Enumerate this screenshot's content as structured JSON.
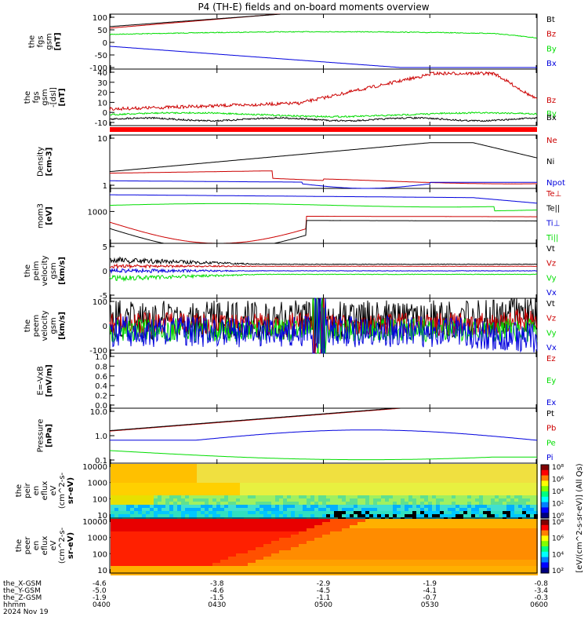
{
  "title": "P4 (TH-E) fields and on-board moments overview",
  "colors": {
    "black": "#000000",
    "red": "#cc0000",
    "green": "#00dd00",
    "blue": "#0000dd"
  },
  "chart_data": [
    {
      "type": "line",
      "panel": "fgs_gsm",
      "ylabel": [
        "the",
        "fgs",
        "gsm",
        "[nT]"
      ],
      "ylim": [
        -100,
        100
      ],
      "yticks": [
        "100",
        "50",
        "0",
        "-50",
        "-100"
      ],
      "series": [
        {
          "name": "Bt",
          "color": "black"
        },
        {
          "name": "Bz",
          "color": "red"
        },
        {
          "name": "By",
          "color": "green"
        },
        {
          "name": "Bx",
          "color": "blue"
        }
      ]
    },
    {
      "type": "line",
      "panel": "fgs_gse_dsl",
      "ylabel": [
        "the",
        "fgs",
        "gsm",
        "-[dsl]",
        "[nT]"
      ],
      "ylim": [
        -14,
        43
      ],
      "yticks": [
        "40",
        "30",
        "20",
        "10",
        "0",
        "-10"
      ],
      "series": [
        {
          "name": "Bz",
          "color": "red"
        },
        {
          "name": "By",
          "color": "green"
        },
        {
          "name": "Bx",
          "color": "black"
        }
      ]
    },
    {
      "type": "line",
      "panel": "density",
      "ylabel": [
        "Density",
        "[cm-3]"
      ],
      "log": true,
      "yticks": [
        "10",
        "1"
      ],
      "series": [
        {
          "name": "Ne",
          "color": "red"
        },
        {
          "name": "Ni",
          "color": "black"
        },
        {
          "name": "Npot",
          "color": "blue"
        }
      ]
    },
    {
      "type": "line",
      "panel": "temperature",
      "ylabel": [
        "mom3",
        "[eV]"
      ],
      "log": true,
      "yticks": [
        "1000"
      ],
      "series": [
        {
          "name": "Te⊥",
          "color": "red"
        },
        {
          "name": "Te||",
          "color": "black"
        },
        {
          "name": "Ti⊥",
          "color": "blue"
        },
        {
          "name": "Ti||",
          "color": "green"
        }
      ]
    },
    {
      "type": "line",
      "panel": "peim_velocity",
      "ylabel": [
        "the",
        "peim",
        "velocity",
        "gsm",
        "[km/s]"
      ],
      "ylim": [
        -9,
        9
      ],
      "yticks": [
        "5",
        "0",
        "-5"
      ],
      "series": [
        {
          "name": "Vt",
          "color": "black"
        },
        {
          "name": "Vz",
          "color": "red"
        },
        {
          "name": "Vy",
          "color": "green"
        },
        {
          "name": "Vx",
          "color": "blue"
        }
      ]
    },
    {
      "type": "line",
      "panel": "peem_velocity",
      "ylabel": [
        "the",
        "peem",
        "velocity",
        "gsm",
        "[km/s]"
      ],
      "ylim": [
        -180,
        200
      ],
      "yticks": [
        "100",
        "0",
        "-100"
      ],
      "series": [
        {
          "name": "Vt",
          "color": "black"
        },
        {
          "name": "Vz",
          "color": "red"
        },
        {
          "name": "Vy",
          "color": "green"
        },
        {
          "name": "Vx",
          "color": "blue"
        }
      ]
    },
    {
      "type": "line",
      "panel": "efield",
      "ylabel": [
        "E=-VxB",
        "[mV/m]"
      ],
      "ylim": [
        0,
        1
      ],
      "yticks": [
        "1.0",
        "0.8",
        "0.6",
        "0.4",
        "0.2",
        "0.0"
      ],
      "series": [
        {
          "name": "Ez",
          "color": "red"
        },
        {
          "name": "Ey",
          "color": "green"
        },
        {
          "name": "Ex",
          "color": "blue"
        }
      ]
    },
    {
      "type": "line",
      "panel": "pressure",
      "ylabel": [
        "Pressure",
        "[nPa]"
      ],
      "log": true,
      "yticks": [
        "10.0",
        "1.0",
        "0.1"
      ],
      "series": [
        {
          "name": "Pt",
          "color": "black"
        },
        {
          "name": "Pb",
          "color": "red"
        },
        {
          "name": "Pe",
          "color": "green"
        },
        {
          "name": "Pi",
          "color": "blue"
        }
      ]
    },
    {
      "type": "heatmap",
      "panel": "peir_spectrogram",
      "ylabel": [
        "the",
        "peir",
        "en",
        "eflux",
        "eV",
        "(cm^2-s-",
        "sr-eV)"
      ],
      "yticks": [
        "10000",
        "1000",
        "100",
        "10"
      ]
    },
    {
      "type": "heatmap",
      "panel": "peer_spectrogram",
      "ylabel": [
        "the",
        "peer",
        "en",
        "eflux",
        "eV",
        "(cm^2-s-",
        "sr-eV)"
      ],
      "yticks": [
        "10000",
        "1000",
        "100",
        "10"
      ]
    }
  ],
  "colorbar": {
    "label": "[eV/(cm^2-s-sr-eV)] (All Qs)",
    "ticks_top": [
      "10⁸",
      "10⁶",
      "10⁴",
      "10²",
      "10⁰"
    ],
    "ticks_bot": [
      "10⁸",
      "10⁶",
      "10⁴",
      "10²"
    ]
  },
  "xaxis": {
    "ticks": [
      "0400",
      "0430",
      "0500",
      "0530",
      "0600"
    ],
    "rows": [
      {
        "label": "the_X-GSM",
        "values": [
          "-4.6",
          "-3.8",
          "-2.9",
          "-1.9",
          "-0.8"
        ]
      },
      {
        "label": "the_Y-GSM",
        "values": [
          "-5.0",
          "-4.6",
          "-4.5",
          "-4.1",
          "-3.4"
        ]
      },
      {
        "label": "the_Z-GSM",
        "values": [
          "-1.9",
          "-1.5",
          "-1.1",
          "-0.7",
          "-0.3"
        ]
      },
      {
        "label": "hhmm",
        "values": [
          "0400",
          "0430",
          "0500",
          "0530",
          "0600"
        ]
      }
    ],
    "date": "2024 Nov 19"
  }
}
